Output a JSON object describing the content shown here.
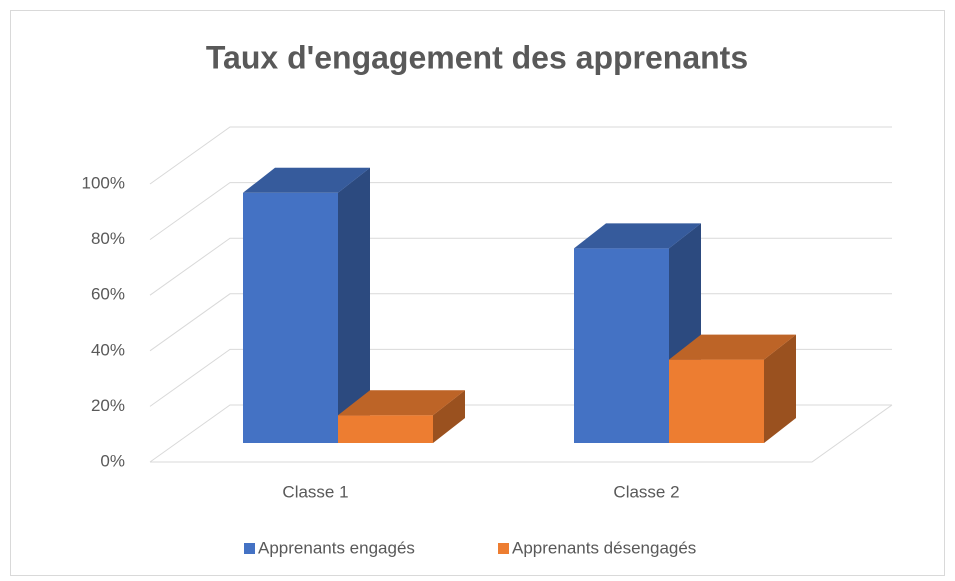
{
  "chart_data": {
    "type": "bar3d",
    "title": "Taux d'engagement des apprenants",
    "categories": [
      "Classe 1",
      "Classe 2"
    ],
    "series": [
      {
        "name": "Apprenants engagés",
        "color": "#4472c4",
        "values": [
          90,
          70
        ]
      },
      {
        "name": "Apprenants désengagés",
        "color": "#ed7d31",
        "values": [
          10,
          30
        ]
      }
    ],
    "ylim": [
      0,
      100
    ],
    "yticks": [
      {
        "value": 0,
        "label": "0%"
      },
      {
        "value": 20,
        "label": "20%"
      },
      {
        "value": 40,
        "label": "40%"
      },
      {
        "value": 60,
        "label": "60%"
      },
      {
        "value": 80,
        "label": "80%"
      },
      {
        "value": 100,
        "label": "100%"
      }
    ],
    "grid": true,
    "legend": "bottom"
  }
}
